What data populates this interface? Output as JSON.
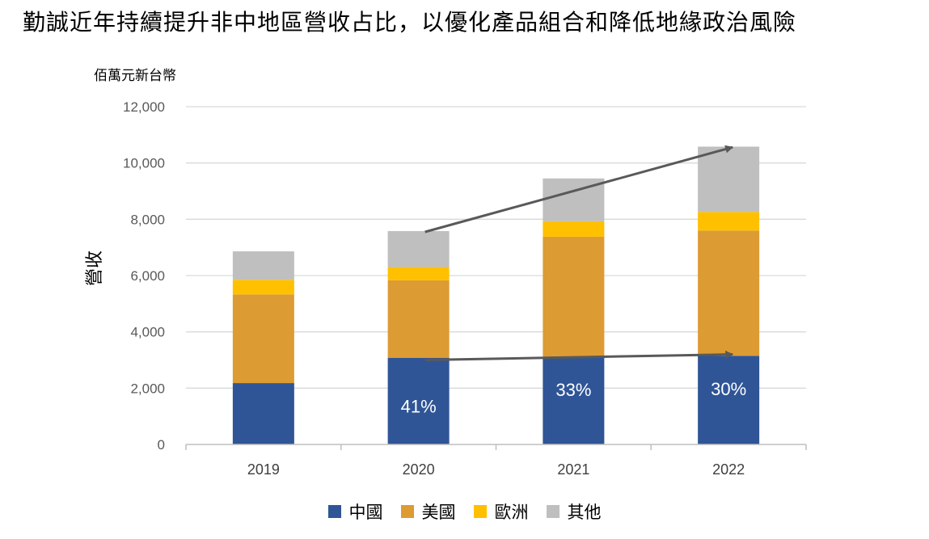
{
  "page_title": "勤誠近年持續提升非中地區營收占比，以優化產品組合和降低地緣政治風險",
  "colors": {
    "china": "#2f5597",
    "usa": "#dd9b33",
    "europe": "#ffc000",
    "other": "#bfbfbf",
    "grid": "#d9d9d9",
    "axis": "#bfbfbf",
    "arrow": "#595959"
  },
  "chart_data": {
    "type": "bar",
    "stacked": true,
    "unit_label": "佰萬元新台幣",
    "ylabel": "營收",
    "xlabel": "",
    "ylim": [
      0,
      12000
    ],
    "y_ticks": [
      "0",
      "2,000",
      "4,000",
      "6,000",
      "8,000",
      "10,000",
      "12,000"
    ],
    "y_tick_values": [
      0,
      2000,
      4000,
      6000,
      8000,
      10000,
      12000
    ],
    "grid": true,
    "legend_position": "bottom",
    "categories": [
      "2019",
      "2020",
      "2021",
      "2022"
    ],
    "series": [
      {
        "name": "中國",
        "color_key": "china",
        "values": [
          2180,
          3080,
          3100,
          3150
        ]
      },
      {
        "name": "美國",
        "color_key": "usa",
        "values": [
          3150,
          2750,
          4280,
          4450
        ]
      },
      {
        "name": "歐洲",
        "color_key": "europe",
        "values": [
          520,
          470,
          550,
          660
        ]
      },
      {
        "name": "其他",
        "color_key": "other",
        "values": [
          1010,
          1280,
          1520,
          2320
        ]
      }
    ],
    "bar_labels": [
      "",
      "41%",
      "33%",
      "30%"
    ],
    "annotations": [
      {
        "type": "trend-arrow",
        "from": {
          "x": "2020",
          "y": 7550
        },
        "to": {
          "x": "2022",
          "y": 10560
        }
      },
      {
        "type": "trend-arrow",
        "from": {
          "x": "2020",
          "y": 3000
        },
        "to": {
          "x": "2022",
          "y": 3200
        }
      }
    ]
  }
}
